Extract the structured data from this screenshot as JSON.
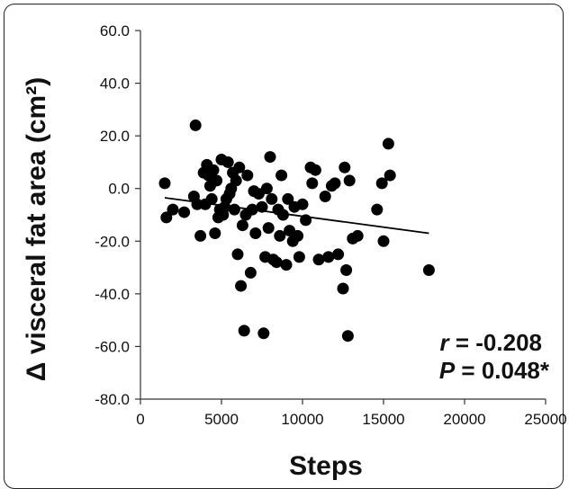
{
  "chart_data": {
    "type": "scatter",
    "xlabel": "Steps",
    "ylabel": "Δ visceral fat area (cm²)",
    "xlim": [
      0,
      25000
    ],
    "ylim": [
      -80,
      60
    ],
    "x_ticks": [
      0,
      5000,
      10000,
      15000,
      20000,
      25000
    ],
    "x_tick_labels": [
      "0",
      "5000",
      "10000",
      "15000",
      "20000",
      "25000"
    ],
    "y_ticks": [
      60,
      40,
      20,
      0,
      -20,
      -40,
      -60,
      -80
    ],
    "y_tick_labels": [
      "60.0",
      "40.0",
      "20.0",
      "0.0",
      "-20.0",
      "-40.0",
      "-60.0",
      "-80.0"
    ],
    "grid": false,
    "marker_color": "#000000",
    "points": [
      {
        "x": 1500,
        "y": 2.0
      },
      {
        "x": 1600,
        "y": -11.0
      },
      {
        "x": 2000,
        "y": -8.0
      },
      {
        "x": 2700,
        "y": -9.0
      },
      {
        "x": 3300,
        "y": -3.0
      },
      {
        "x": 3400,
        "y": 24.0
      },
      {
        "x": 3500,
        "y": -6.0
      },
      {
        "x": 3700,
        "y": -18.0
      },
      {
        "x": 3900,
        "y": 6.0
      },
      {
        "x": 4000,
        "y": -6.0
      },
      {
        "x": 4100,
        "y": 9.0
      },
      {
        "x": 4200,
        "y": 5.0
      },
      {
        "x": 4300,
        "y": 1.0
      },
      {
        "x": 4400,
        "y": -4.0
      },
      {
        "x": 4500,
        "y": 7.0
      },
      {
        "x": 4600,
        "y": -17.0
      },
      {
        "x": 4700,
        "y": 3.0
      },
      {
        "x": 4800,
        "y": -11.0
      },
      {
        "x": 4900,
        "y": -8.0
      },
      {
        "x": 5000,
        "y": 11.0
      },
      {
        "x": 5100,
        "y": -10.0
      },
      {
        "x": 5200,
        "y": -7.0
      },
      {
        "x": 5300,
        "y": -4.0
      },
      {
        "x": 5400,
        "y": 10.0
      },
      {
        "x": 5500,
        "y": -2.0
      },
      {
        "x": 5600,
        "y": 0.0
      },
      {
        "x": 5700,
        "y": 6.0
      },
      {
        "x": 5800,
        "y": -8.0
      },
      {
        "x": 5900,
        "y": 3.0
      },
      {
        "x": 6000,
        "y": -25.0
      },
      {
        "x": 6100,
        "y": 8.0
      },
      {
        "x": 6200,
        "y": -37.0
      },
      {
        "x": 6300,
        "y": -14.0
      },
      {
        "x": 6400,
        "y": -54.0
      },
      {
        "x": 6500,
        "y": -10.0
      },
      {
        "x": 6600,
        "y": 5.0
      },
      {
        "x": 6800,
        "y": -32.0
      },
      {
        "x": 6900,
        "y": -8.0
      },
      {
        "x": 7000,
        "y": -1.0
      },
      {
        "x": 7100,
        "y": -17.0
      },
      {
        "x": 7300,
        "y": -2.0
      },
      {
        "x": 7500,
        "y": -7.0
      },
      {
        "x": 7600,
        "y": -55.0
      },
      {
        "x": 7700,
        "y": -26.0
      },
      {
        "x": 7800,
        "y": 0.0
      },
      {
        "x": 7900,
        "y": -15.0
      },
      {
        "x": 8000,
        "y": 12.0
      },
      {
        "x": 8100,
        "y": -4.0
      },
      {
        "x": 8200,
        "y": -27.0
      },
      {
        "x": 8400,
        "y": -28.0
      },
      {
        "x": 8500,
        "y": -8.0
      },
      {
        "x": 8600,
        "y": -18.0
      },
      {
        "x": 8700,
        "y": 5.0
      },
      {
        "x": 8800,
        "y": -10.0
      },
      {
        "x": 9000,
        "y": -29.0
      },
      {
        "x": 9100,
        "y": -4.0
      },
      {
        "x": 9200,
        "y": -16.0
      },
      {
        "x": 9400,
        "y": -20.0
      },
      {
        "x": 9500,
        "y": -7.0
      },
      {
        "x": 9700,
        "y": -18.0
      },
      {
        "x": 9800,
        "y": -26.0
      },
      {
        "x": 10000,
        "y": -6.0
      },
      {
        "x": 10200,
        "y": -12.0
      },
      {
        "x": 10500,
        "y": 8.0
      },
      {
        "x": 10600,
        "y": 2.0
      },
      {
        "x": 10800,
        "y": 7.0
      },
      {
        "x": 11000,
        "y": -27.0
      },
      {
        "x": 11400,
        "y": -3.0
      },
      {
        "x": 11600,
        "y": -26.0
      },
      {
        "x": 11800,
        "y": 1.0
      },
      {
        "x": 12000,
        "y": 2.0
      },
      {
        "x": 12200,
        "y": -25.0
      },
      {
        "x": 12500,
        "y": -38.0
      },
      {
        "x": 12600,
        "y": 8.0
      },
      {
        "x": 12700,
        "y": -31.0
      },
      {
        "x": 12800,
        "y": -56.0
      },
      {
        "x": 12900,
        "y": 3.0
      },
      {
        "x": 13100,
        "y": -19.0
      },
      {
        "x": 13400,
        "y": -18.0
      },
      {
        "x": 14600,
        "y": -8.0
      },
      {
        "x": 14900,
        "y": 2.0
      },
      {
        "x": 15000,
        "y": -20.0
      },
      {
        "x": 15300,
        "y": 17.0
      },
      {
        "x": 15400,
        "y": 5.0
      },
      {
        "x": 17800,
        "y": -31.0
      }
    ],
    "regression_line": {
      "x": [
        1500,
        17800
      ],
      "y": [
        -3.5,
        -17.0
      ]
    },
    "annotations": {
      "r_symbol": "r",
      "r_value": " = -0.208",
      "p_symbol": "P",
      "p_value": " = 0.048*"
    }
  }
}
